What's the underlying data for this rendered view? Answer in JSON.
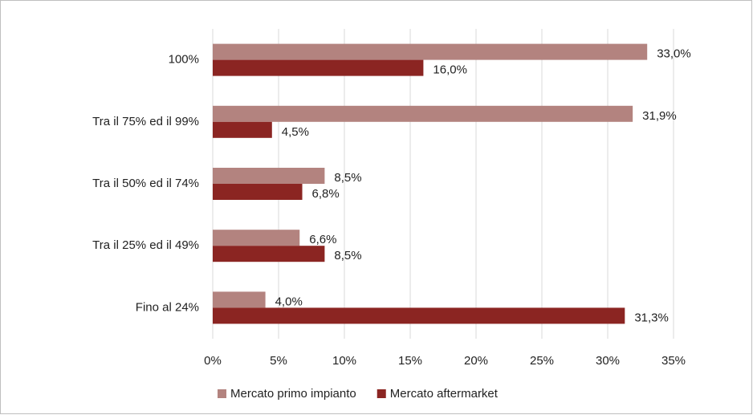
{
  "chart_data": {
    "type": "hbar",
    "categories": [
      "100%",
      "Tra il 75% ed il 99%",
      "Tra il 50% ed il 74%",
      "Tra il 25% ed il 49%",
      "Fino al 24%"
    ],
    "series": [
      {
        "name": "Mercato primo impianto",
        "color": "#b3837f",
        "values": [
          33.0,
          31.9,
          8.5,
          6.6,
          4.0
        ],
        "value_labels": [
          "33,0%",
          "31,9%",
          "8,5%",
          "6,6%",
          "4,0%"
        ]
      },
      {
        "name": "Mercato aftermarket",
        "color": "#8b2522",
        "values": [
          16.0,
          4.5,
          6.8,
          8.5,
          31.3
        ],
        "value_labels": [
          "16,0%",
          "4,5%",
          "6,8%",
          "8,5%",
          "31,3%"
        ]
      }
    ],
    "xlim": [
      0,
      35
    ],
    "xticks": [
      {
        "value": 0,
        "label": "0%"
      },
      {
        "value": 5,
        "label": "5%"
      },
      {
        "value": 10,
        "label": "10%"
      },
      {
        "value": 15,
        "label": "15%"
      },
      {
        "value": 20,
        "label": "20%"
      },
      {
        "value": 25,
        "label": "25%"
      },
      {
        "value": 30,
        "label": "30%"
      },
      {
        "value": 35,
        "label": "35%"
      }
    ],
    "grid": true,
    "legend": "bottom"
  }
}
